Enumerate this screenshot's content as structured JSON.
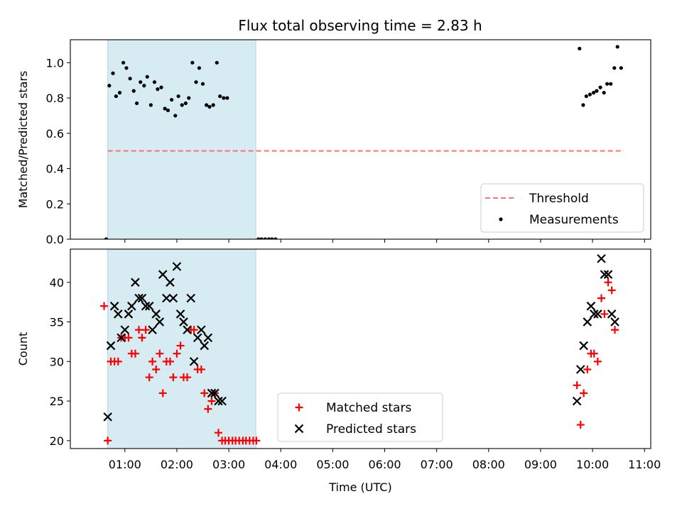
{
  "title": "Flux total observing time = 2.83 h",
  "chart_data": [
    {
      "type": "scatter",
      "ylabel": "Matched/Predicted stars",
      "ylim": [
        0,
        1.13
      ],
      "xlim": [
        -0.05,
        11.12
      ],
      "yticks": [
        0.0,
        0.2,
        0.4,
        0.6,
        0.8,
        1.0
      ],
      "ytick_labels": [
        "0.0",
        "0.2",
        "0.4",
        "0.6",
        "0.8",
        "1.0"
      ],
      "shaded_span": [
        0.67,
        3.52
      ],
      "shade_color": "#add8e6",
      "legend_position": "lower right",
      "threshold": {
        "name": "Threshold",
        "y": 0.5,
        "x": [
          0.67,
          10.6
        ],
        "color": "#ff7070",
        "style": "dashed"
      },
      "series": [
        {
          "name": "Measurements",
          "marker": "dot",
          "color": "#000000",
          "points": [
            [
              0.64,
              0.0
            ],
            [
              0.7,
              0.87
            ],
            [
              0.77,
              0.94
            ],
            [
              0.83,
              0.81
            ],
            [
              0.9,
              0.83
            ],
            [
              0.97,
              1.0
            ],
            [
              1.03,
              0.97
            ],
            [
              1.1,
              0.91
            ],
            [
              1.17,
              0.84
            ],
            [
              1.23,
              0.77
            ],
            [
              1.3,
              0.89
            ],
            [
              1.37,
              0.87
            ],
            [
              1.43,
              0.92
            ],
            [
              1.5,
              0.76
            ],
            [
              1.57,
              0.89
            ],
            [
              1.63,
              0.85
            ],
            [
              1.7,
              0.86
            ],
            [
              1.77,
              0.74
            ],
            [
              1.83,
              0.73
            ],
            [
              1.9,
              0.79
            ],
            [
              1.97,
              0.7
            ],
            [
              2.03,
              0.81
            ],
            [
              2.1,
              0.76
            ],
            [
              2.17,
              0.77
            ],
            [
              2.23,
              0.8
            ],
            [
              2.3,
              1.0
            ],
            [
              2.37,
              0.89
            ],
            [
              2.43,
              0.97
            ],
            [
              2.5,
              0.88
            ],
            [
              2.57,
              0.76
            ],
            [
              2.63,
              0.75
            ],
            [
              2.7,
              0.76
            ],
            [
              2.77,
              1.0
            ],
            [
              2.83,
              0.81
            ],
            [
              2.9,
              0.8
            ],
            [
              2.97,
              0.8
            ],
            [
              3.57,
              0.0
            ],
            [
              3.63,
              0.0
            ],
            [
              3.7,
              0.0
            ],
            [
              3.77,
              0.0
            ],
            [
              3.83,
              0.0
            ],
            [
              3.9,
              0.0
            ],
            [
              9.75,
              1.08
            ],
            [
              9.82,
              0.76
            ],
            [
              9.88,
              0.81
            ],
            [
              9.95,
              0.82
            ],
            [
              10.02,
              0.83
            ],
            [
              10.08,
              0.84
            ],
            [
              10.15,
              0.86
            ],
            [
              10.22,
              0.83
            ],
            [
              10.28,
              0.88
            ],
            [
              10.35,
              0.88
            ],
            [
              10.42,
              0.97
            ],
            [
              10.48,
              1.09
            ],
            [
              10.55,
              0.97
            ]
          ]
        }
      ]
    },
    {
      "type": "scatter",
      "ylabel": "Count",
      "xlabel": "Time (UTC)",
      "ylim": [
        19,
        44.2
      ],
      "xlim": [
        -0.05,
        11.12
      ],
      "yticks": [
        20,
        25,
        30,
        35,
        40
      ],
      "ytick_labels": [
        "20",
        "25",
        "30",
        "35",
        "40"
      ],
      "xticks": [
        1,
        2,
        3,
        4,
        5,
        6,
        7,
        8,
        9,
        10,
        11
      ],
      "xtick_labels": [
        "01:00",
        "02:00",
        "03:00",
        "04:00",
        "05:00",
        "06:00",
        "07:00",
        "08:00",
        "09:00",
        "10:00",
        "11:00"
      ],
      "shaded_span": [
        0.67,
        3.52
      ],
      "shade_color": "#add8e6",
      "legend_position": "lower center",
      "series": [
        {
          "name": "Matched stars",
          "marker": "plus",
          "color": "#ff0000",
          "points": [
            [
              0.6,
              37
            ],
            [
              0.67,
              20
            ],
            [
              0.73,
              30
            ],
            [
              0.8,
              30
            ],
            [
              0.87,
              30
            ],
            [
              0.93,
              33
            ],
            [
              1.0,
              33
            ],
            [
              1.07,
              33
            ],
            [
              1.13,
              31
            ],
            [
              1.2,
              31
            ],
            [
              1.27,
              34
            ],
            [
              1.33,
              33
            ],
            [
              1.4,
              34
            ],
            [
              1.47,
              28
            ],
            [
              1.53,
              30
            ],
            [
              1.6,
              29
            ],
            [
              1.67,
              31
            ],
            [
              1.73,
              26
            ],
            [
              1.8,
              30
            ],
            [
              1.87,
              30
            ],
            [
              1.93,
              28
            ],
            [
              2.0,
              31
            ],
            [
              2.07,
              32
            ],
            [
              2.13,
              28
            ],
            [
              2.2,
              28
            ],
            [
              2.27,
              34
            ],
            [
              2.33,
              34
            ],
            [
              2.4,
              29
            ],
            [
              2.47,
              29
            ],
            [
              2.53,
              26
            ],
            [
              2.6,
              24
            ],
            [
              2.67,
              25
            ],
            [
              2.73,
              26
            ],
            [
              2.8,
              21
            ],
            [
              2.87,
              20
            ],
            [
              2.93,
              20
            ],
            [
              3.0,
              20
            ],
            [
              3.07,
              20
            ],
            [
              3.13,
              20
            ],
            [
              3.2,
              20
            ],
            [
              3.27,
              20
            ],
            [
              3.33,
              20
            ],
            [
              3.4,
              20
            ],
            [
              3.47,
              20
            ],
            [
              3.53,
              20
            ],
            [
              9.7,
              27
            ],
            [
              9.77,
              22
            ],
            [
              9.83,
              26
            ],
            [
              9.9,
              29
            ],
            [
              9.97,
              31
            ],
            [
              10.03,
              31
            ],
            [
              10.1,
              30
            ],
            [
              10.17,
              38
            ],
            [
              10.23,
              36
            ],
            [
              10.3,
              40
            ],
            [
              10.37,
              39
            ],
            [
              10.43,
              34
            ]
          ]
        },
        {
          "name": "Predicted stars",
          "marker": "x",
          "color": "#000000",
          "points": [
            [
              0.67,
              23
            ],
            [
              0.73,
              32
            ],
            [
              0.8,
              37
            ],
            [
              0.87,
              36
            ],
            [
              0.93,
              33
            ],
            [
              1.0,
              34
            ],
            [
              1.07,
              36
            ],
            [
              1.13,
              37
            ],
            [
              1.2,
              40
            ],
            [
              1.27,
              38
            ],
            [
              1.33,
              38
            ],
            [
              1.4,
              37
            ],
            [
              1.47,
              37
            ],
            [
              1.53,
              34
            ],
            [
              1.6,
              36
            ],
            [
              1.67,
              35
            ],
            [
              1.73,
              41
            ],
            [
              1.8,
              38
            ],
            [
              1.87,
              40
            ],
            [
              1.93,
              38
            ],
            [
              2.0,
              42
            ],
            [
              2.07,
              36
            ],
            [
              2.13,
              35
            ],
            [
              2.2,
              34
            ],
            [
              2.27,
              38
            ],
            [
              2.33,
              30
            ],
            [
              2.4,
              33
            ],
            [
              2.47,
              34
            ],
            [
              2.53,
              32
            ],
            [
              2.6,
              33
            ],
            [
              2.67,
              26
            ],
            [
              2.73,
              26
            ],
            [
              2.8,
              25
            ],
            [
              2.87,
              25
            ],
            [
              9.7,
              25
            ],
            [
              9.77,
              29
            ],
            [
              9.83,
              32
            ],
            [
              9.9,
              35
            ],
            [
              9.97,
              37
            ],
            [
              10.03,
              36
            ],
            [
              10.1,
              36
            ],
            [
              10.17,
              43
            ],
            [
              10.23,
              41
            ],
            [
              10.3,
              41
            ],
            [
              10.37,
              36
            ],
            [
              10.43,
              35
            ]
          ]
        }
      ]
    }
  ]
}
